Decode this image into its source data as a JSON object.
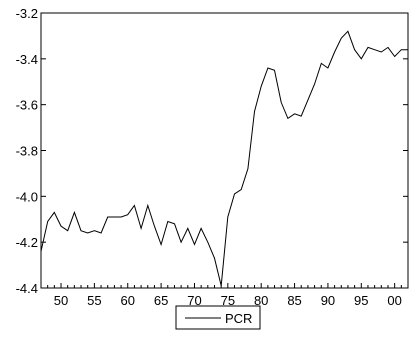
{
  "chart_data": {
    "type": "line",
    "title": "",
    "xlabel": "",
    "ylabel": "",
    "xlim": [
      1947,
      2002
    ],
    "ylim": [
      -4.4,
      -3.2
    ],
    "grid": false,
    "legend_position": "bottom-center",
    "x_ticks": [
      {
        "x": 1950,
        "label": "50"
      },
      {
        "x": 1955,
        "label": "55"
      },
      {
        "x": 1960,
        "label": "60"
      },
      {
        "x": 1965,
        "label": "65"
      },
      {
        "x": 1970,
        "label": "70"
      },
      {
        "x": 1975,
        "label": "75"
      },
      {
        "x": 1980,
        "label": "80"
      },
      {
        "x": 1985,
        "label": "85"
      },
      {
        "x": 1990,
        "label": "90"
      },
      {
        "x": 1995,
        "label": "95"
      },
      {
        "x": 2000,
        "label": "00"
      }
    ],
    "y_ticks": [
      {
        "y": -3.2,
        "label": "-3.2"
      },
      {
        "y": -3.4,
        "label": "-3.4"
      },
      {
        "y": -3.6,
        "label": "-3.6"
      },
      {
        "y": -3.8,
        "label": "-3.8"
      },
      {
        "y": -4.0,
        "label": "-4.0"
      },
      {
        "y": -4.2,
        "label": "-4.2"
      },
      {
        "y": -4.4,
        "label": "-4.4"
      }
    ],
    "series": [
      {
        "name": "PCR",
        "color": "#000000",
        "x": [
          1947,
          1948,
          1949,
          1950,
          1951,
          1952,
          1953,
          1954,
          1955,
          1956,
          1957,
          1958,
          1959,
          1960,
          1961,
          1962,
          1963,
          1964,
          1965,
          1966,
          1967,
          1968,
          1969,
          1970,
          1971,
          1972,
          1973,
          1974,
          1975,
          1976,
          1977,
          1978,
          1979,
          1980,
          1981,
          1982,
          1983,
          1984,
          1985,
          1986,
          1987,
          1988,
          1989,
          1990,
          1991,
          1992,
          1993,
          1994,
          1995,
          1996,
          1997,
          1998,
          1999,
          2000,
          2001,
          2002
        ],
        "values": [
          -4.24,
          -4.11,
          -4.07,
          -4.13,
          -4.15,
          -4.07,
          -4.15,
          -4.16,
          -4.15,
          -4.16,
          -4.09,
          -4.09,
          -4.09,
          -4.08,
          -4.04,
          -4.14,
          -4.04,
          -4.13,
          -4.21,
          -4.11,
          -4.12,
          -4.2,
          -4.14,
          -4.21,
          -4.14,
          -4.2,
          -4.27,
          -4.39,
          -4.09,
          -3.99,
          -3.97,
          -3.88,
          -3.63,
          -3.52,
          -3.44,
          -3.45,
          -3.59,
          -3.66,
          -3.64,
          -3.65,
          -3.58,
          -3.51,
          -3.42,
          -3.44,
          -3.37,
          -3.31,
          -3.28,
          -3.36,
          -3.4,
          -3.35,
          -3.36,
          -3.37,
          -3.35,
          -3.39,
          -3.36,
          -3.36
        ]
      }
    ]
  }
}
